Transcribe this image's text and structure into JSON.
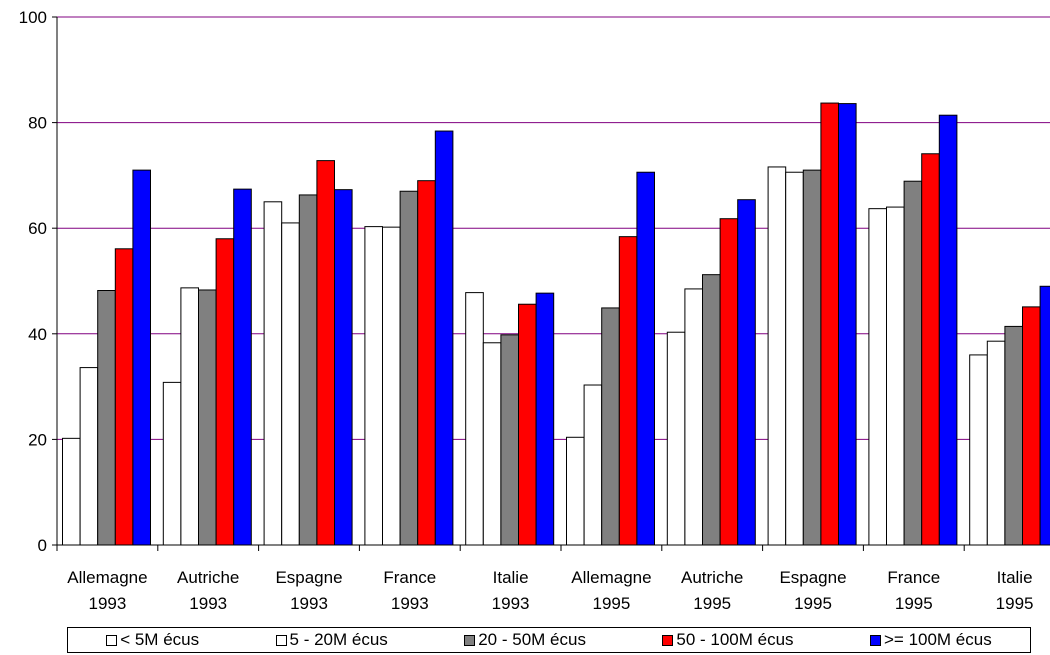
{
  "chart_data": {
    "type": "bar",
    "title": "",
    "xlabel": "",
    "ylabel": "",
    "ylim": [
      0,
      100
    ],
    "yticks": [
      0,
      20,
      40,
      60,
      80,
      100
    ],
    "grid": true,
    "legend_position": "bottom",
    "categories": [
      [
        "Allemagne",
        "1993"
      ],
      [
        "Autriche",
        "1993"
      ],
      [
        "Espagne",
        "1993"
      ],
      [
        "France",
        "1993"
      ],
      [
        "Italie",
        "1993"
      ],
      [
        "Allemagne",
        "1995"
      ],
      [
        "Autriche",
        "1995"
      ],
      [
        "Espagne",
        "1995"
      ],
      [
        "France",
        "1995"
      ],
      [
        "Italie",
        "1995"
      ]
    ],
    "series": [
      {
        "name": "< 5M écus",
        "color": "#ffffff",
        "values": [
          20.2,
          30.8,
          65.0,
          60.3,
          47.8,
          20.4,
          40.3,
          71.6,
          63.7,
          36.0
        ]
      },
      {
        "name": "5 - 20M écus",
        "color": "#ffffff",
        "values": [
          33.6,
          48.7,
          61.0,
          60.2,
          38.3,
          30.3,
          48.5,
          70.6,
          64.0,
          38.6
        ]
      },
      {
        "name": "20 - 50M écus",
        "color": "#808080",
        "values": [
          48.2,
          48.3,
          66.3,
          67.0,
          39.8,
          44.9,
          51.2,
          71.0,
          68.9,
          41.4
        ]
      },
      {
        "name": "50 - 100M écus",
        "color": "#ff0000",
        "values": [
          56.1,
          58.0,
          72.8,
          69.0,
          45.6,
          58.4,
          61.8,
          83.7,
          74.1,
          45.1
        ]
      },
      {
        "name": ">= 100M écus",
        "color": "#0000ff",
        "values": [
          71.0,
          67.4,
          67.3,
          78.4,
          47.7,
          70.6,
          65.4,
          83.6,
          81.4,
          49.0
        ]
      }
    ]
  }
}
